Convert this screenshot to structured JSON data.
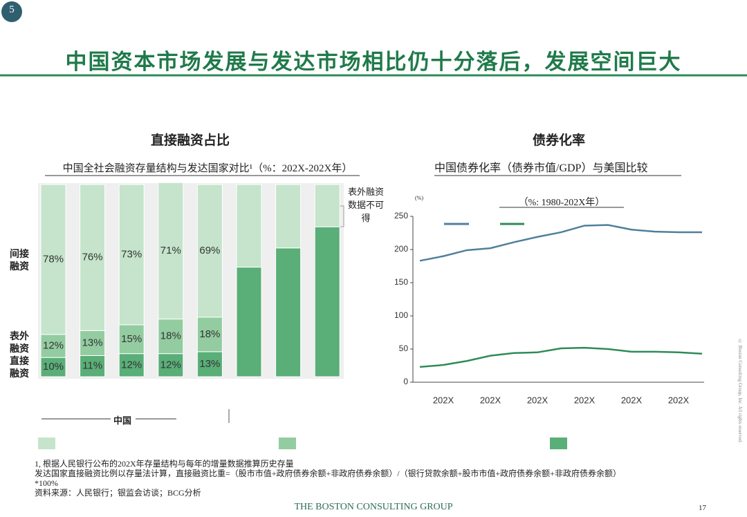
{
  "slide_number": "5",
  "title": "中国资本市场发展与发达市场相比仍十分落后，发展空间巨大",
  "chart_data": [
    {
      "type": "stacked_bar",
      "title": "直接融资占比",
      "subtitle": "中国全社会融资存量结构与发达国家对比¹（%：202X-202X年）",
      "categories": [
        null,
        null,
        null,
        null,
        null,
        null,
        null,
        null
      ],
      "ylim": [
        0,
        100
      ],
      "series": [
        {
          "name": "直接融资",
          "color": "#5aae78",
          "values": [
            10,
            11,
            12,
            12,
            13,
            57,
            67,
            78
          ],
          "value_labels": [
            "10%",
            "11%",
            "12%",
            "12%",
            "13%",
            null,
            null,
            null
          ]
        },
        {
          "name": "表外融资",
          "color": "#93cca0",
          "values": [
            12,
            13,
            15,
            18,
            18,
            null,
            null,
            null
          ],
          "value_labels": [
            "12%",
            "13%",
            "15%",
            "18%",
            "18%",
            null,
            null,
            null
          ]
        },
        {
          "name": "间接融资",
          "color": "#c5e4cb",
          "values": [
            78,
            76,
            73,
            71,
            69,
            43,
            33,
            22
          ],
          "value_labels": [
            "78%",
            "76%",
            "73%",
            "71%",
            "69%",
            null,
            null,
            null
          ]
        }
      ]
    },
    {
      "type": "line",
      "title": "债券化率",
      "subtitle": "中国债券化率（债券市值/GDP）与美国比较",
      "note": "（%: 1980-202X年）",
      "y_label": "(%)",
      "categories": [
        null,
        "202X",
        null,
        "202X",
        null,
        "202X",
        null,
        "202X",
        null,
        "202X",
        null,
        "202X",
        null
      ],
      "ylim": [
        0,
        250
      ],
      "yticks": [
        0,
        50,
        100,
        150,
        200,
        250
      ],
      "grid": false,
      "series": [
        {
          "color": "#4f7f9c",
          "values": [
            183,
            190,
            199,
            202,
            211,
            219,
            226,
            236,
            237,
            230,
            227,
            226,
            226
          ]
        },
        {
          "color": "#2e8b57",
          "values": [
            23,
            26,
            32,
            40,
            44,
            45,
            51,
            52,
            50,
            46,
            46,
            45,
            43
          ]
        }
      ]
    }
  ],
  "china_label": "中国",
  "callout": "表外融资数据不可得",
  "footnotes": [
    "1, 根据人民银行公布的202X年存量结构与每年的增量数据推算历史存量",
    "发达国家直接融资比例以存量法计算，直接融资比重=（股市市值+政府债券余额+非政府债券余额）/（银行贷款余额+股市市值+政府债券余额+非政府债券余额）",
    "*100%",
    "资料来源：人民银行；银监会访谈；BCG分析"
  ],
  "logo": "THE BOSTON CONSULTING GROUP",
  "page": "17",
  "copyright": "© Boston Consulting Group, Inc. All rights reserved."
}
